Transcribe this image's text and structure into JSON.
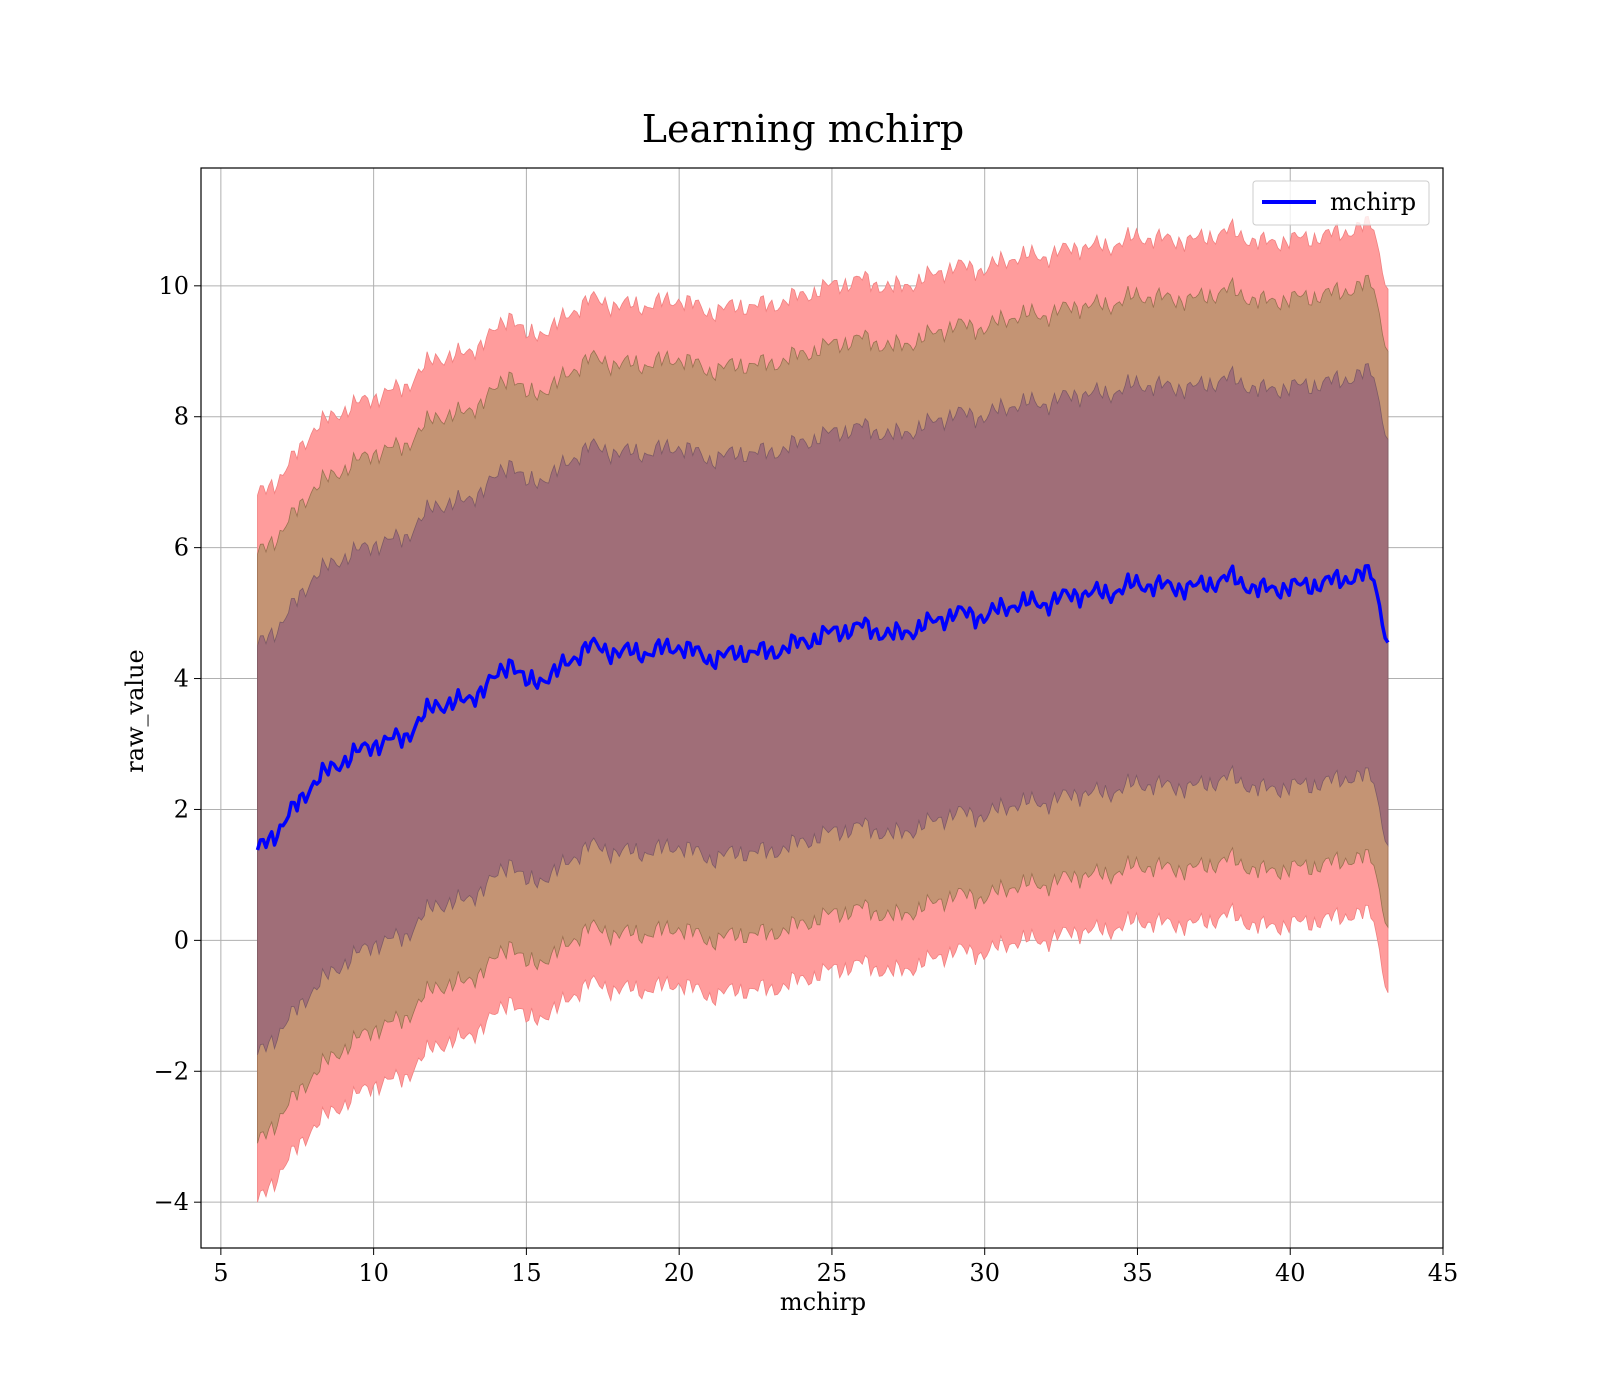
{
  "chart_data": {
    "type": "area",
    "title": "Learning mchirp",
    "xlabel": "mchirp",
    "ylabel": "raw_value",
    "xlim": [
      4.35,
      45
    ],
    "ylim": [
      -4.7,
      11.8
    ],
    "x_ticks": [
      5,
      10,
      15,
      20,
      25,
      30,
      35,
      40,
      45
    ],
    "x_tick_labels": [
      "5",
      "10",
      "15",
      "20",
      "25",
      "30",
      "35",
      "40",
      "45"
    ],
    "y_ticks": [
      -4,
      -2,
      0,
      2,
      4,
      6,
      8,
      10
    ],
    "y_tick_labels": [
      "−4",
      "−2",
      "0",
      "2",
      "4",
      "6",
      "8",
      "10"
    ],
    "grid": true,
    "legend": {
      "position": "top-right",
      "entries": [
        "mchirp"
      ]
    },
    "colors": {
      "line": "#0000ff",
      "band_outer": "#ff9c9c",
      "band_middle": "#c49474",
      "band_inner": "#a06e78",
      "grid": "#b0b0b0",
      "axes": "#000000"
    },
    "series": [
      {
        "name": "mchirp",
        "x": [
          6.2,
          7,
          8,
          9,
          10,
          11,
          12,
          13,
          14,
          14.5,
          15,
          16,
          17,
          18,
          19,
          20,
          21,
          22,
          23,
          24,
          25,
          26,
          27,
          28,
          29,
          30,
          31,
          32,
          33,
          34,
          35,
          36,
          37,
          38,
          39,
          40,
          41,
          42,
          42.7,
          43.2
        ],
        "y": [
          1.38,
          1.75,
          2.4,
          2.75,
          3.0,
          3.1,
          3.6,
          3.65,
          4.0,
          4.3,
          3.9,
          4.1,
          4.5,
          4.4,
          4.4,
          4.5,
          4.3,
          4.4,
          4.4,
          4.55,
          4.7,
          4.8,
          4.65,
          4.8,
          5.0,
          4.95,
          5.15,
          5.15,
          5.3,
          5.3,
          5.45,
          5.4,
          5.4,
          5.55,
          5.35,
          5.4,
          5.45,
          5.55,
          5.6,
          4.55
        ],
        "band_1sigma_lower": [
          -1.75,
          -1.35,
          -0.75,
          -0.35,
          -0.05,
          0.05,
          0.55,
          0.6,
          0.95,
          1.25,
          0.85,
          1.05,
          1.45,
          1.35,
          1.35,
          1.45,
          1.25,
          1.35,
          1.35,
          1.5,
          1.65,
          1.75,
          1.6,
          1.75,
          1.95,
          1.9,
          2.1,
          2.1,
          2.25,
          2.25,
          2.4,
          2.35,
          2.35,
          2.5,
          2.3,
          2.35,
          2.4,
          2.5,
          2.5,
          1.45
        ],
        "band_1sigma_upper": [
          4.5,
          4.85,
          5.55,
          5.85,
          6.05,
          6.15,
          6.65,
          6.7,
          7.05,
          7.35,
          6.95,
          7.15,
          7.55,
          7.45,
          7.45,
          7.55,
          7.35,
          7.45,
          7.45,
          7.6,
          7.75,
          7.85,
          7.7,
          7.85,
          8.05,
          8.0,
          8.2,
          8.2,
          8.35,
          8.35,
          8.5,
          8.45,
          8.45,
          8.6,
          8.4,
          8.45,
          8.5,
          8.6,
          8.7,
          7.65
        ],
        "band_2sigma_lower": [
          -3.1,
          -2.65,
          -2.05,
          -1.65,
          -1.35,
          -1.2,
          -0.7,
          -0.65,
          -0.3,
          0.0,
          -0.4,
          -0.2,
          0.2,
          0.1,
          0.1,
          0.2,
          0.0,
          0.1,
          0.1,
          0.25,
          0.4,
          0.5,
          0.35,
          0.5,
          0.7,
          0.65,
          0.85,
          0.85,
          1.0,
          1.0,
          1.15,
          1.1,
          1.1,
          1.25,
          1.05,
          1.1,
          1.15,
          1.25,
          1.25,
          0.2
        ],
        "band_2sigma_upper": [
          5.9,
          6.25,
          6.9,
          7.2,
          7.45,
          7.55,
          8.0,
          8.05,
          8.4,
          8.7,
          8.3,
          8.5,
          8.9,
          8.8,
          8.8,
          8.9,
          8.7,
          8.8,
          8.8,
          8.95,
          9.1,
          9.2,
          9.05,
          9.2,
          9.4,
          9.35,
          9.55,
          9.55,
          9.7,
          9.7,
          9.85,
          9.8,
          9.8,
          9.95,
          9.75,
          9.8,
          9.85,
          9.95,
          10.05,
          9.0
        ],
        "band_3sigma_lower": [
          -4.0,
          -3.5,
          -2.85,
          -2.5,
          -2.2,
          -2.1,
          -1.6,
          -1.5,
          -1.15,
          -0.85,
          -1.25,
          -1.05,
          -0.65,
          -0.75,
          -0.75,
          -0.65,
          -0.85,
          -0.75,
          -0.75,
          -0.6,
          -0.45,
          -0.35,
          -0.5,
          -0.35,
          -0.15,
          -0.2,
          0.0,
          0.0,
          0.15,
          0.15,
          0.3,
          0.25,
          0.25,
          0.4,
          0.2,
          0.25,
          0.3,
          0.4,
          0.4,
          -0.8
        ],
        "band_3sigma_upper": [
          6.8,
          7.1,
          7.8,
          8.1,
          8.3,
          8.45,
          8.9,
          8.95,
          9.3,
          9.6,
          9.2,
          9.4,
          9.8,
          9.7,
          9.7,
          9.8,
          9.6,
          9.7,
          9.7,
          9.85,
          10.0,
          10.1,
          9.95,
          10.1,
          10.3,
          10.25,
          10.45,
          10.45,
          10.6,
          10.6,
          10.75,
          10.7,
          10.7,
          10.85,
          10.65,
          10.7,
          10.75,
          10.85,
          10.95,
          9.95
        ]
      }
    ]
  }
}
